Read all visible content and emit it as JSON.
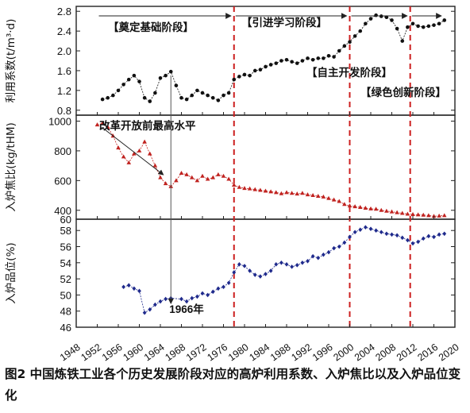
{
  "caption": "图2  中国炼铁工业各个历史发展阶段对应的高炉利用系数、入炉焦比以及入炉品位变化",
  "colors": {
    "frame": "#222222",
    "phase_line": "#cc1f1f",
    "utilization": "#111111",
    "coke": "#c0221f",
    "grade": "#1f2a8c"
  },
  "chart_data": {
    "type": "line",
    "x_axis": {
      "xlim": [
        1948,
        2020
      ],
      "ticks": [
        1948,
        1952,
        1956,
        1960,
        1964,
        1968,
        1972,
        1976,
        1980,
        1984,
        1988,
        1992,
        1996,
        2000,
        2004,
        2008,
        2012,
        2016,
        2020
      ]
    },
    "phase_boundaries": [
      1978,
      2000,
      2011.5
    ],
    "phases": [
      {
        "label": "【奠定基础阶段】",
        "start": 1952,
        "end": 1978
      },
      {
        "label": "【引进学习阶段】",
        "start": 1978,
        "end": 2000
      },
      {
        "label": "【自主开发阶段】",
        "start": 2000,
        "end": 2011.5
      },
      {
        "label": "【绿色创新阶段】",
        "start": 2011.5,
        "end": 2018
      }
    ],
    "annotations": [
      {
        "text": "改革开放前最高水平",
        "at_x": 1965,
        "panel": "coke"
      },
      {
        "text": "1966年",
        "at_x": 1966,
        "panel": "grade"
      }
    ],
    "panels": [
      {
        "name": "utilization",
        "ylabel": "利用系数(t/m³·d)",
        "ylim": [
          0.7,
          2.9
        ],
        "yticks": [
          0.8,
          1.2,
          1.6,
          2.0,
          2.4,
          2.8
        ],
        "marker": "circle",
        "x": [
          1953,
          1954,
          1955,
          1956,
          1957,
          1958,
          1959,
          1960,
          1961,
          1962,
          1963,
          1964,
          1965,
          1966,
          1967,
          1968,
          1969,
          1970,
          1971,
          1972,
          1973,
          1974,
          1975,
          1976,
          1977,
          1978,
          1979,
          1980,
          1981,
          1982,
          1983,
          1984,
          1985,
          1986,
          1987,
          1988,
          1989,
          1990,
          1991,
          1992,
          1993,
          1994,
          1995,
          1996,
          1997,
          1998,
          1999,
          2000,
          2001,
          2002,
          2003,
          2004,
          2005,
          2006,
          2007,
          2008,
          2009,
          2010,
          2011,
          2012,
          2013,
          2014,
          2015,
          2016,
          2017,
          2018
        ],
        "values": [
          1.02,
          1.05,
          1.1,
          1.2,
          1.32,
          1.42,
          1.5,
          1.38,
          1.05,
          0.98,
          1.15,
          1.45,
          1.5,
          1.58,
          1.3,
          1.05,
          1.02,
          1.1,
          1.2,
          1.15,
          1.1,
          1.05,
          1.0,
          1.1,
          1.15,
          1.42,
          1.48,
          1.52,
          1.5,
          1.6,
          1.62,
          1.68,
          1.72,
          1.75,
          1.8,
          1.82,
          1.78,
          1.75,
          1.8,
          1.85,
          1.82,
          1.85,
          1.85,
          1.9,
          1.88,
          2.0,
          2.1,
          2.18,
          2.3,
          2.4,
          2.55,
          2.65,
          2.72,
          2.7,
          2.68,
          2.62,
          2.45,
          2.2,
          2.48,
          2.55,
          2.5,
          2.48,
          2.5,
          2.52,
          2.55,
          2.62
        ]
      },
      {
        "name": "coke",
        "ylabel": "入炉焦比(kg/tHM)",
        "ylim": [
          340,
          1040
        ],
        "yticks": [
          400,
          600,
          800,
          1000
        ],
        "extra_tick_label": "60",
        "marker": "triangle",
        "x": [
          1952,
          1953,
          1954,
          1955,
          1956,
          1957,
          1958,
          1959,
          1960,
          1961,
          1962,
          1963,
          1964,
          1965,
          1966,
          1967,
          1968,
          1969,
          1970,
          1971,
          1972,
          1973,
          1974,
          1975,
          1976,
          1977,
          1978,
          1979,
          1980,
          1981,
          1982,
          1983,
          1984,
          1985,
          1986,
          1987,
          1988,
          1989,
          1990,
          1991,
          1992,
          1993,
          1994,
          1995,
          1996,
          1997,
          1998,
          1999,
          2000,
          2001,
          2002,
          2003,
          2004,
          2005,
          2006,
          2007,
          2008,
          2009,
          2010,
          2011,
          2012,
          2013,
          2014,
          2015,
          2016,
          2017,
          2018
        ],
        "values": [
          975,
          985,
          960,
          900,
          820,
          760,
          720,
          780,
          800,
          860,
          780,
          700,
          620,
          580,
          560,
          600,
          650,
          640,
          620,
          600,
          630,
          610,
          620,
          640,
          630,
          610,
          570,
          555,
          548,
          545,
          540,
          535,
          530,
          525,
          520,
          512,
          520,
          515,
          510,
          515,
          505,
          500,
          495,
          490,
          480,
          470,
          460,
          440,
          430,
          425,
          420,
          415,
          410,
          408,
          400,
          395,
          390,
          385,
          380,
          375,
          372,
          370,
          368,
          365,
          360,
          362,
          365
        ]
      },
      {
        "name": "grade",
        "ylabel": "入炉品位(%)",
        "ylim": [
          46,
          59.4
        ],
        "yticks": [
          46,
          48,
          50,
          52,
          54,
          56,
          58
        ],
        "marker": "diamond",
        "x": [
          1957,
          1958,
          1959,
          1960,
          1961,
          1962,
          1963,
          1964,
          1965,
          1966,
          1968,
          1969,
          1970,
          1971,
          1972,
          1973,
          1974,
          1975,
          1976,
          1977,
          1978,
          1979,
          1980,
          1981,
          1982,
          1983,
          1984,
          1985,
          1986,
          1987,
          1988,
          1989,
          1990,
          1991,
          1992,
          1993,
          1994,
          1995,
          1996,
          1997,
          1998,
          1999,
          2000,
          2001,
          2002,
          2003,
          2004,
          2005,
          2006,
          2007,
          2008,
          2009,
          2010,
          2011,
          2012,
          2013,
          2014,
          2015,
          2016,
          2017,
          2018
        ],
        "values": [
          51.0,
          51.2,
          50.8,
          50.5,
          47.8,
          48.2,
          48.8,
          49.2,
          49.5,
          49.6,
          49.5,
          49.2,
          49.6,
          49.8,
          50.2,
          50.0,
          50.4,
          50.8,
          51.0,
          51.5,
          52.8,
          53.8,
          53.6,
          53.0,
          52.5,
          52.3,
          52.6,
          53.0,
          53.8,
          54.0,
          53.8,
          53.5,
          53.7,
          54.0,
          54.2,
          54.8,
          54.6,
          55.0,
          55.3,
          55.8,
          56.0,
          56.5,
          57.2,
          57.8,
          58.1,
          58.4,
          58.2,
          58.0,
          57.8,
          57.6,
          57.5,
          57.4,
          57.1,
          56.8,
          56.4,
          56.6,
          57.0,
          57.3,
          57.2,
          57.5,
          57.6
        ]
      }
    ]
  }
}
